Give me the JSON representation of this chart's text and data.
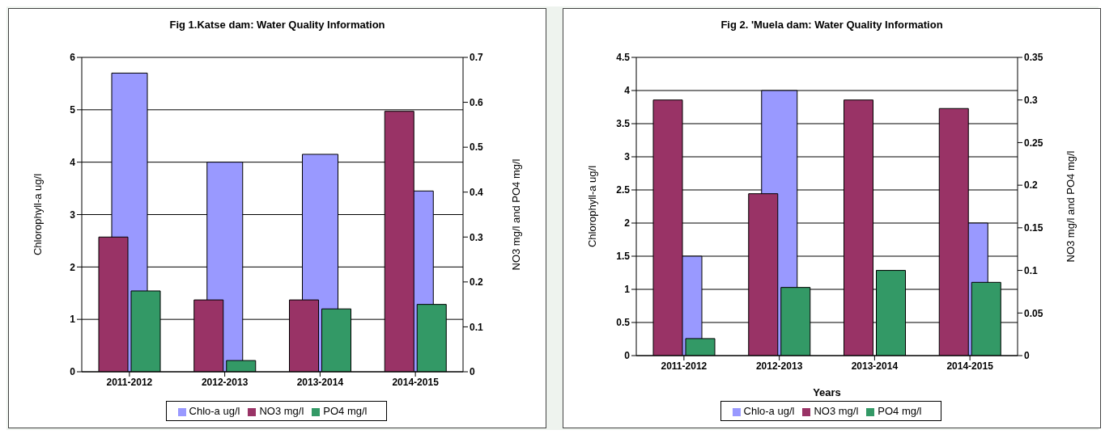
{
  "chart_data": [
    {
      "type": "bar",
      "title": "Fig 1.Katse dam: Water Quality Information",
      "ylabel": "Chlorophyll-a ug/l",
      "y2label": "NO3 mg/l and PO4 mg/l",
      "categories": [
        "2011-2012",
        "2012-2013",
        "2013-2014",
        "2014-2015"
      ],
      "series": [
        {
          "name": "Chlo-a ug/l",
          "color": "#9999ff",
          "values": [
            5.7,
            4.0,
            4.15,
            3.45
          ]
        },
        {
          "name": "NO3 mg/l",
          "color": "#993366",
          "axis": "y2",
          "values": [
            0.3,
            0.16,
            0.16,
            0.58
          ]
        },
        {
          "name": "PO4 mg/l",
          "color": "#339966",
          "axis": "y2",
          "values": [
            0.18,
            0.025,
            0.14,
            0.15
          ]
        }
      ],
      "ylim": [
        0,
        6
      ],
      "yticks": [
        0,
        1,
        2,
        3,
        4,
        5,
        6
      ],
      "y2lim": [
        0,
        0.7
      ],
      "y2ticks": [
        0,
        0.1,
        0.2,
        0.3,
        0.4,
        0.5,
        0.6,
        0.7
      ],
      "grid": "y",
      "legend": "bottom"
    },
    {
      "type": "bar",
      "title": "Fig 2. 'Muela dam: Water Quality Information",
      "xlabel": "Years",
      "ylabel": "Chlorophyll-a ug/l",
      "y2label": "NO3 mg/l and PO4 mg/l",
      "categories": [
        "2011-2012",
        "2012-2013",
        "2013-2014",
        "2014-2015"
      ],
      "series": [
        {
          "name": "Chlo-a ug/l",
          "color": "#9999ff",
          "values": [
            1.5,
            4.0,
            null,
            2.0
          ]
        },
        {
          "name": "NO3 mg/l",
          "color": "#993366",
          "axis": "y2",
          "values": [
            0.3,
            0.19,
            0.3,
            0.29
          ]
        },
        {
          "name": "PO4 mg/l",
          "color": "#339966",
          "axis": "y2",
          "values": [
            0.02,
            0.08,
            0.1,
            0.086
          ]
        }
      ],
      "ylim": [
        0,
        4.5
      ],
      "yticks": [
        0,
        0.5,
        1,
        1.5,
        2,
        2.5,
        3,
        3.5,
        4,
        4.5
      ],
      "y2lim": [
        0,
        0.35
      ],
      "y2ticks": [
        0,
        0.05,
        0.1,
        0.15,
        0.2,
        0.25,
        0.3,
        0.35
      ],
      "grid": "y",
      "legend": "bottom"
    }
  ]
}
